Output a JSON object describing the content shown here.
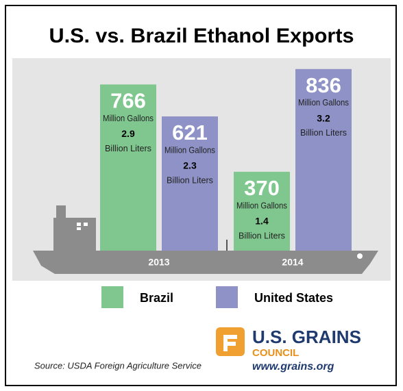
{
  "chart_data": {
    "type": "bar",
    "title": "U.S. vs. Brazil Ethanol Exports",
    "categories": [
      "2013",
      "2014"
    ],
    "value_unit": "Million Gallons",
    "liters_unit": "Billion Liters",
    "series": [
      {
        "name": "Brazil",
        "color": "#80c78f",
        "values": [
          766,
          370
        ],
        "liters": [
          2.9,
          1.4
        ]
      },
      {
        "name": "United States",
        "color": "#8e92c6",
        "values": [
          621,
          836
        ],
        "liters": [
          2.3,
          3.2
        ]
      }
    ],
    "source": "Source: USDA Foreign Agriculture Service",
    "logo": {
      "name": "U.S. GRAINS",
      "subtitle": "COUNCIL",
      "url": "www.grains.org"
    }
  }
}
